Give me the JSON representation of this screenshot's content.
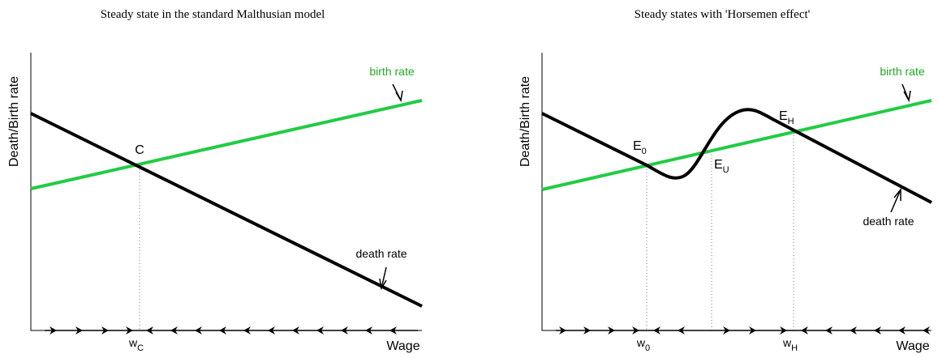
{
  "panels": [
    {
      "title": "Steady state in the standard Malthusian model",
      "y_label": "Death/Birth rate",
      "x_label": "Wage",
      "birth_label": "birth rate",
      "death_label": "death rate",
      "points": [
        {
          "main": "C"
        }
      ],
      "wages": [
        {
          "main": "w",
          "sub": "C"
        }
      ]
    },
    {
      "title": "Steady states with 'Horsemen effect'",
      "y_label": "Death/Birth rate",
      "x_label": "Wage",
      "birth_label": "birth rate",
      "death_label": "death rate",
      "points": [
        {
          "main": "E",
          "sub": "0"
        },
        {
          "main": "E",
          "sub": "U"
        },
        {
          "main": "E",
          "sub": "H"
        }
      ],
      "wages": [
        {
          "main": "w",
          "sub": "0"
        },
        {
          "main": "w",
          "sub": "H"
        }
      ]
    }
  ]
}
